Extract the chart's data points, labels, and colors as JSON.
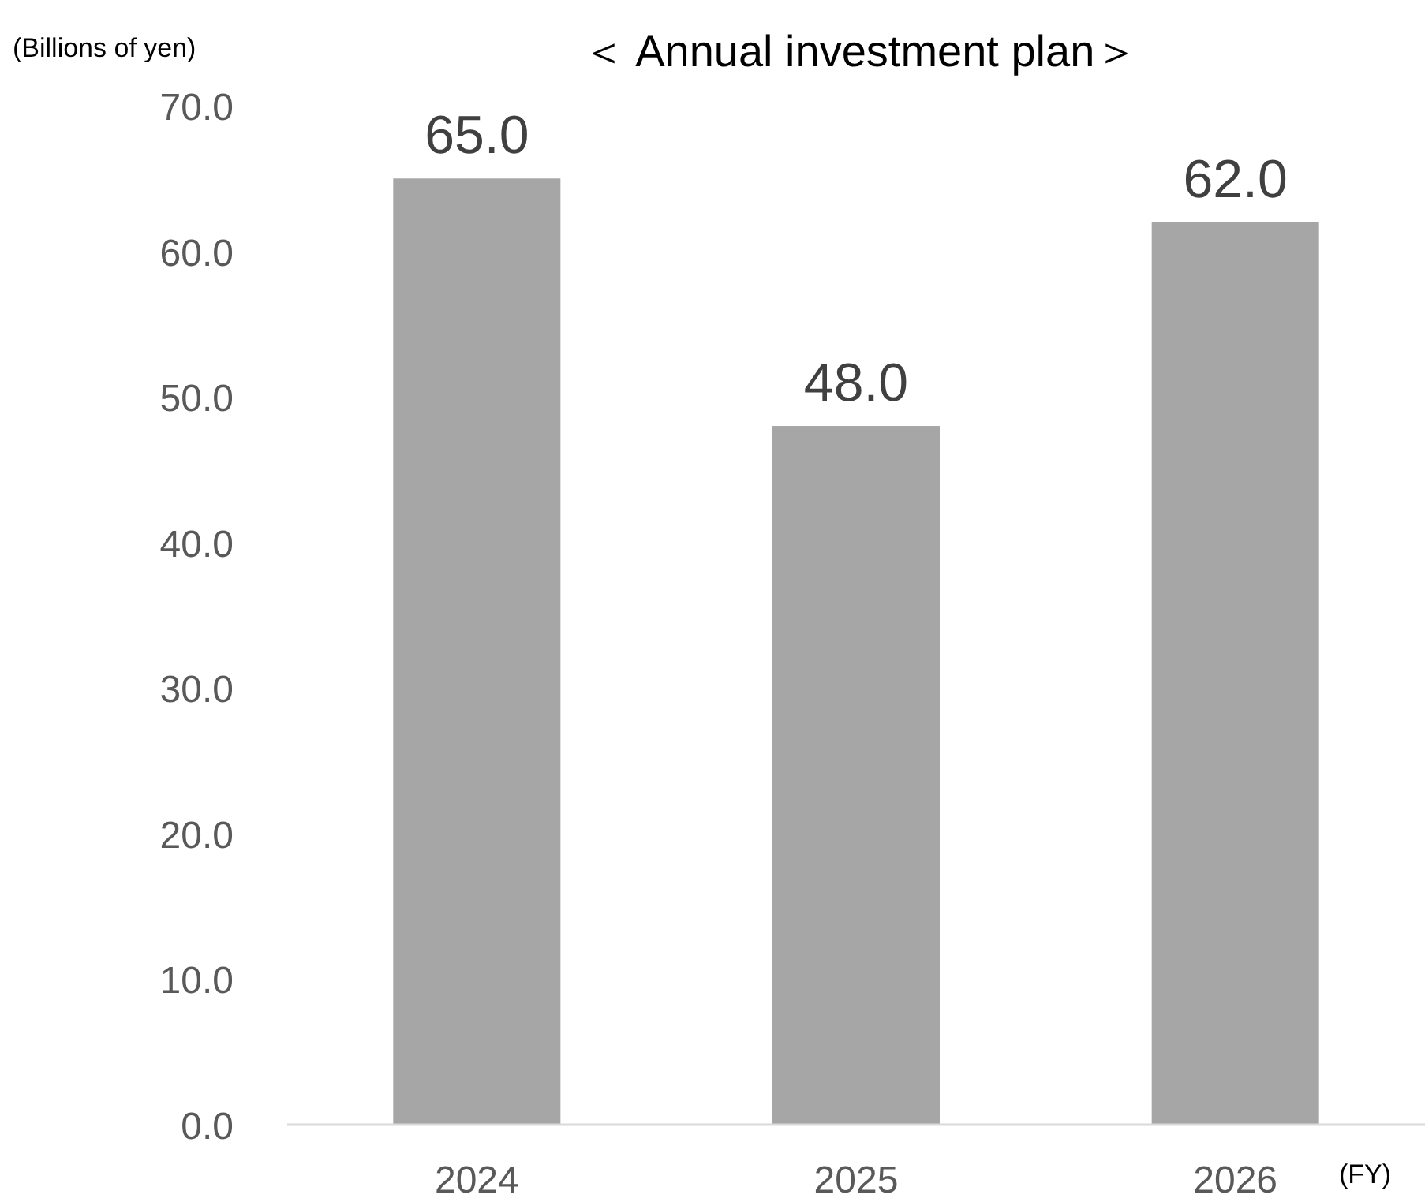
{
  "chart_data": {
    "type": "bar",
    "title": "＜ Annual investment plan＞",
    "ylabel": "(Billions of yen)",
    "xlabel": "(FY)",
    "categories": [
      "2024",
      "2025",
      "2026"
    ],
    "values": [
      65.0,
      48.0,
      62.0
    ],
    "color": "#a6a6a6",
    "ylim": [
      0,
      70
    ],
    "yticks": [
      {
        "value": 0,
        "label": "0.0"
      },
      {
        "value": 10,
        "label": "10.0"
      },
      {
        "value": 20,
        "label": "20.0"
      },
      {
        "value": 30,
        "label": "30.0"
      },
      {
        "value": 40,
        "label": "40.0"
      },
      {
        "value": 50,
        "label": "50.0"
      },
      {
        "value": 60,
        "label": "60.0"
      },
      {
        "value": 70,
        "label": "70.0"
      }
    ],
    "value_labels": [
      "65.0",
      "48.0",
      "62.0"
    ],
    "grid": false
  }
}
